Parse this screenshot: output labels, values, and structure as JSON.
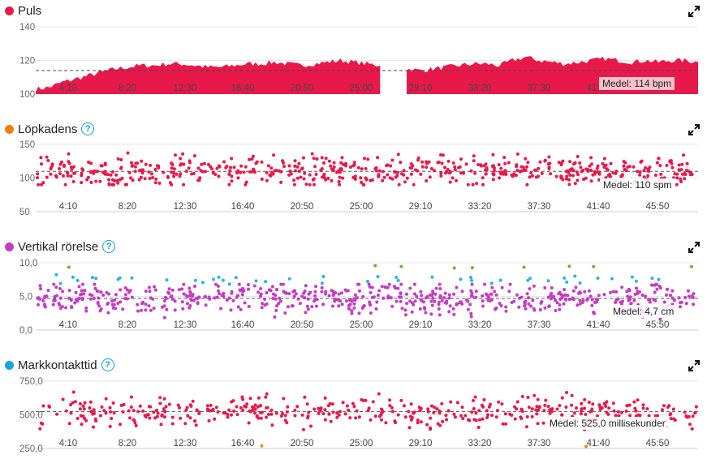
{
  "colors": {
    "puls": "#e8194a",
    "kadens_dot": "#e8820c",
    "vertikal_dot": "#c43dbf",
    "mark_dot": "#1aa2dc",
    "help": "#1a9ad6",
    "blue_pts": "#2fb0e6",
    "green_pts": "#6ab33c",
    "orange_pts": "#ef8a1a"
  },
  "icons": {
    "expand": "expand-icon",
    "help": "help-icon"
  },
  "panels": {
    "puls": {
      "title": "Puls",
      "avg": "Medel: 114 bpm"
    },
    "kadens": {
      "title": "Löpkadens",
      "avg": "Medel: 110 spm"
    },
    "vertikal": {
      "title": "Vertikal rörelse",
      "avg": "Medel: 4,7 cm"
    },
    "mark": {
      "title": "Markkontakttid",
      "avg": "Medel: 525,0 millisekunder"
    }
  },
  "chart_data": [
    {
      "type": "area",
      "title": "Puls",
      "ylim": [
        100,
        140
      ],
      "y_ticks": [
        "100",
        "120",
        "140"
      ],
      "x_ticks": [
        "4:10",
        "8:20",
        "12:30",
        "16:40",
        "20:50",
        "25:00",
        "29:10",
        "33:20",
        "37:30",
        "41:40",
        "45:50"
      ],
      "average": 114,
      "gap_at": "27:00",
      "series": [
        {
          "x": [
            "0:00",
            "1:00",
            "2:00",
            "3:00",
            "4:00",
            "5:00",
            "6:00",
            "7:00",
            "8:00",
            "9:00",
            "10:00",
            "11:00",
            "12:00",
            "13:00",
            "14:00",
            "15:00",
            "16:00",
            "17:00",
            "18:00",
            "19:00",
            "20:00",
            "21:00",
            "22:00",
            "23:00",
            "24:00",
            "25:00",
            "26:00",
            "27:00",
            "28:00",
            "29:00",
            "30:00",
            "31:00",
            "32:00",
            "33:00",
            "34:00",
            "35:00",
            "36:00",
            "37:00",
            "38:00",
            "39:00",
            "40:00",
            "41:00",
            "42:00",
            "43:00",
            "44:00",
            "45:00",
            "46:00",
            "47:00",
            "48:00",
            "49:00",
            "50:00"
          ],
          "values": [
            103,
            104,
            107,
            109,
            111,
            113,
            115,
            116,
            117,
            117,
            118,
            118,
            117,
            116,
            116,
            117,
            118,
            118,
            119,
            118,
            117,
            118,
            119,
            120,
            119,
            118,
            117,
            null,
            115,
            114,
            115,
            116,
            117,
            118,
            118,
            117,
            120,
            122,
            120,
            119,
            118,
            119,
            120,
            121,
            120,
            119,
            120,
            119,
            120,
            120,
            119
          ]
        }
      ]
    },
    {
      "type": "scatter",
      "title": "Löpkadens",
      "ylim": [
        50,
        150
      ],
      "y_ticks": [
        "50",
        "100",
        "150"
      ],
      "x_ticks": [
        "4:10",
        "8:20",
        "12:30",
        "16:40",
        "20:50",
        "25:00",
        "29:10",
        "33:20",
        "37:30",
        "41:40",
        "45:50"
      ],
      "average": 110,
      "series": [
        {
          "name": "",
          "center": 110,
          "spread": [
            90,
            145
          ],
          "count": 600
        }
      ]
    },
    {
      "type": "scatter",
      "title": "Vertikal rörelse",
      "ylim": [
        0,
        10
      ],
      "y_ticks": [
        "0,0",
        "5,0",
        "10,0"
      ],
      "x_ticks": [
        "4:10",
        "8:20",
        "12:30",
        "16:40",
        "20:50",
        "25:00",
        "29:10",
        "33:20",
        "37:30",
        "41:40",
        "45:50"
      ],
      "average": 4.7,
      "series": [
        {
          "name": "",
          "center": 4.7,
          "spread": [
            1.0,
            6.8
          ],
          "count": 600
        },
        {
          "name": "",
          "center": 7.5,
          "spread": [
            6.5,
            8.5
          ],
          "count": 45
        },
        {
          "name": "",
          "center": 9.3,
          "spread": [
            8.8,
            9.8
          ],
          "count": 9
        }
      ]
    },
    {
      "type": "scatter",
      "title": "Markkontakttid",
      "ylim": [
        250,
        750
      ],
      "y_ticks": [
        "250,0",
        "500,0",
        "750,0"
      ],
      "x_ticks": [
        "4:10",
        "8:20",
        "12:30",
        "16:40",
        "20:50",
        "25:00",
        "29:10",
        "33:20",
        "37:30",
        "41:40",
        "45:50"
      ],
      "average": 525.0,
      "series": [
        {
          "name": "",
          "center": 525,
          "spread": [
            390,
            720
          ],
          "count": 450
        },
        {
          "name": "",
          "center": 270,
          "spread": [
            260,
            280
          ],
          "count": 2
        }
      ]
    }
  ]
}
